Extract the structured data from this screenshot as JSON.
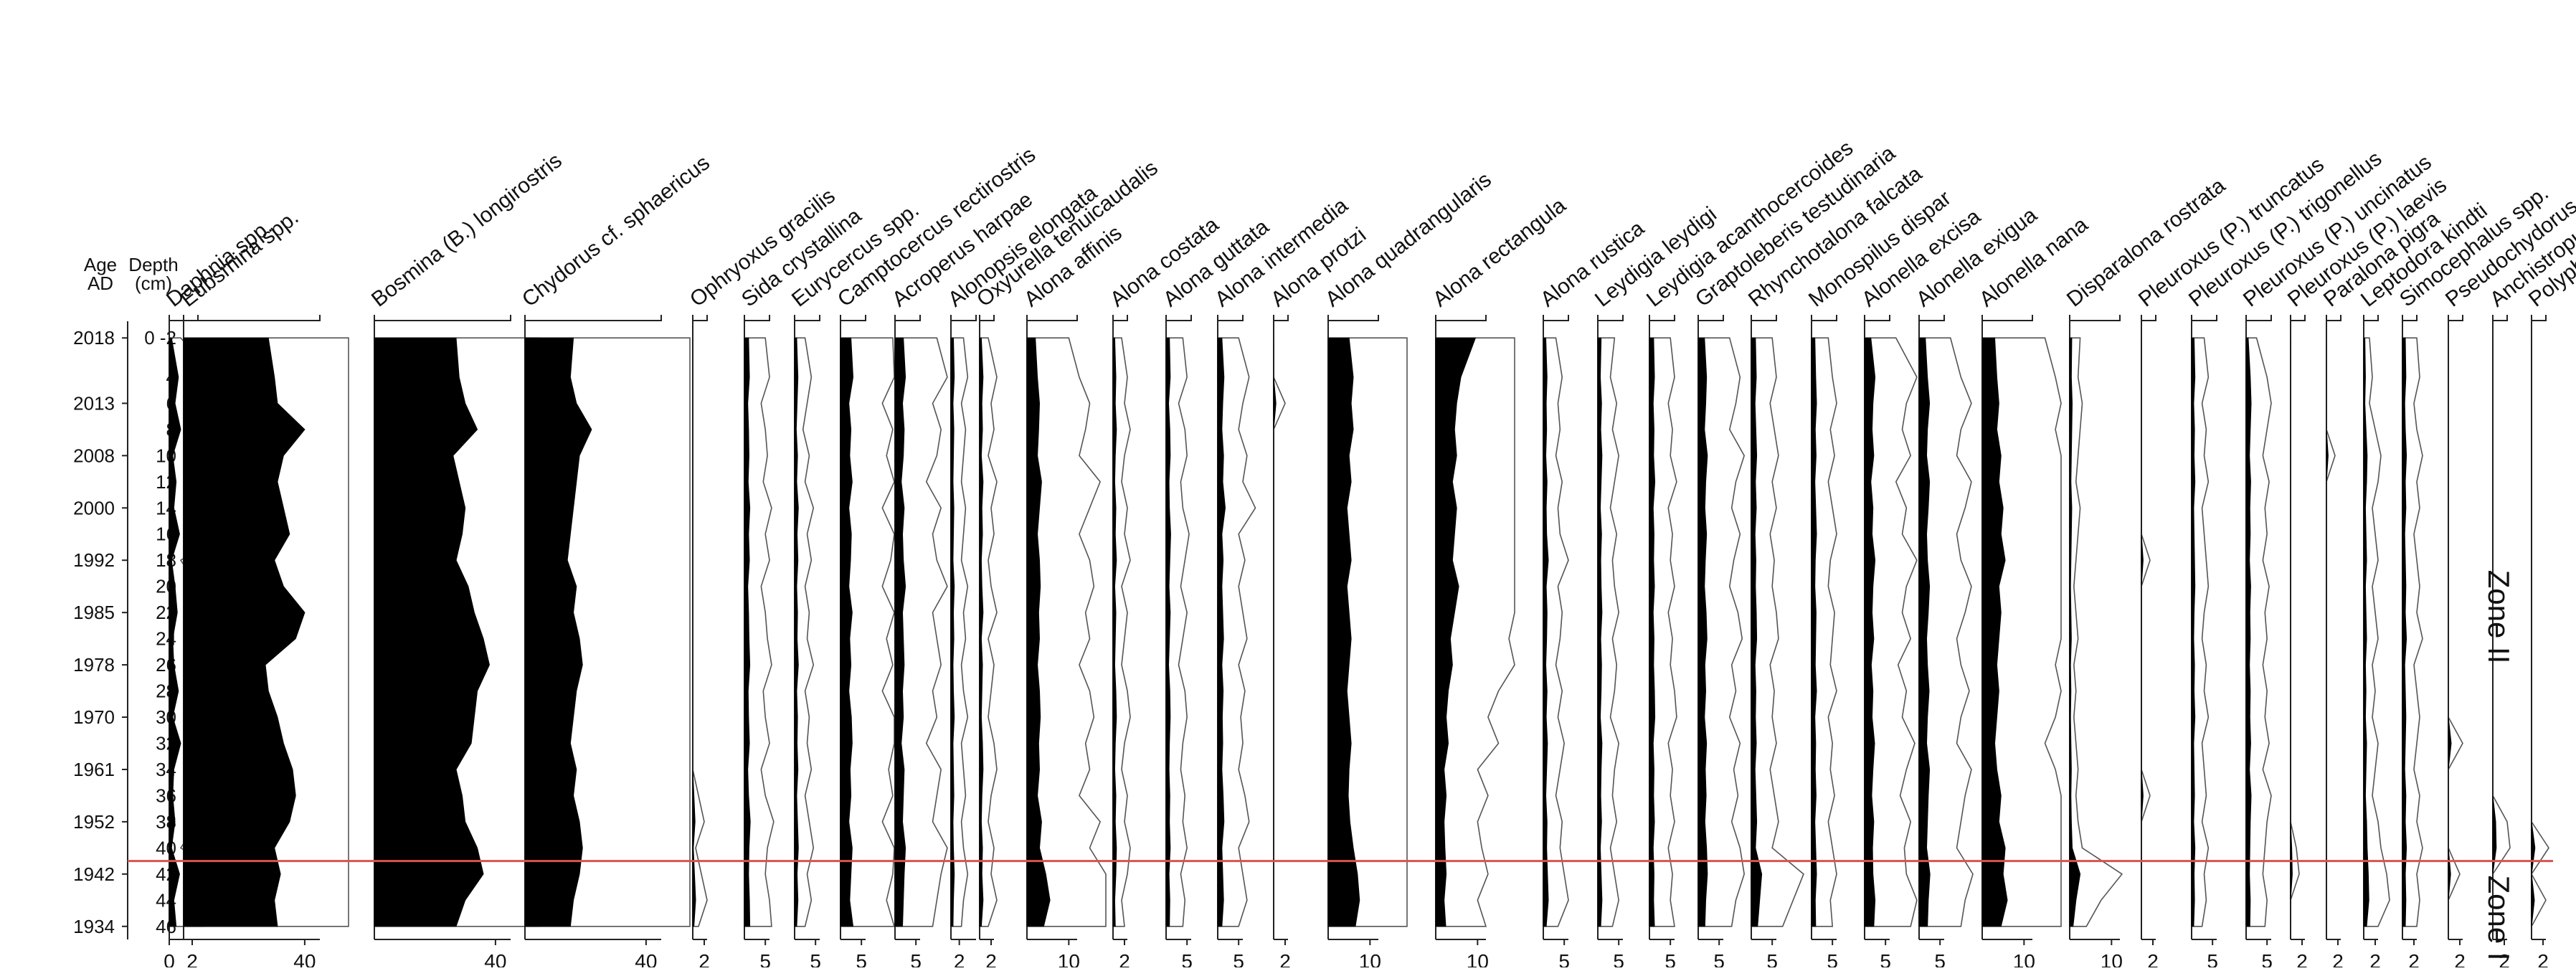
{
  "chart_data": {
    "type": "area",
    "y_axis": {
      "age_title": [
        "Age",
        "AD"
      ],
      "depth_title": [
        "Depth",
        "(cm)"
      ],
      "age_labels": [
        "2018",
        "2013",
        "2008",
        "2000",
        "1992",
        "1985",
        "1978",
        "1970",
        "1961",
        "1952",
        "1942",
        "1934"
      ],
      "depth_labels": [
        "0 -2",
        "4",
        "6",
        "8",
        "10",
        "12",
        "14",
        "16",
        "18",
        "20",
        "22",
        "24",
        "26",
        "28",
        "30",
        "32",
        "34",
        "36",
        "38",
        "40",
        "42",
        "44",
        "46"
      ],
      "depth_values": [
        1,
        4,
        6,
        8,
        10,
        12,
        14,
        16,
        18,
        20,
        22,
        24,
        26,
        28,
        30,
        32,
        34,
        36,
        38,
        40,
        42,
        44,
        46
      ],
      "ylim": [
        0,
        47
      ]
    },
    "zone_boundary_depth": 41,
    "zone_labels": [
      "Zone II",
      "Zone I"
    ],
    "colors": {
      "fill": "#000000",
      "exaggeration_line": "#555555",
      "zone_line": "#d9534f"
    },
    "series": [
      {
        "name": "Daphnia spp.",
        "ticks": [
          0,
          2
        ],
        "values": [
          0.2,
          0.8,
          0.5,
          1.0,
          0.3,
          0.6,
          0.4,
          0.9,
          0.2,
          0.5,
          0.7,
          0.3,
          0.4,
          0.8,
          0.3,
          1.0,
          0.4,
          0.3,
          0.5,
          0.2,
          0.9,
          0.4,
          0.6
        ]
      },
      {
        "name": "Eubsmina spp.",
        "ticks": [
          40
        ],
        "values": [
          28,
          30,
          31,
          40,
          33,
          31,
          33,
          35,
          30,
          33,
          40,
          37,
          27,
          28,
          31,
          33,
          36,
          37,
          35,
          30,
          32,
          30,
          31
        ]
      },
      {
        "name": "Bosmina (B.) longirostris",
        "ticks": [
          40
        ],
        "values": [
          27,
          28,
          30,
          34,
          26,
          28,
          30,
          29,
          27,
          31,
          33,
          36,
          38,
          34,
          33,
          32,
          27,
          29,
          30,
          34,
          36,
          30,
          27
        ]
      },
      {
        "name": "Chydorus cf. sphaericus",
        "ticks": [
          40
        ],
        "values": [
          16,
          15,
          17,
          22,
          18,
          17,
          16,
          15,
          14,
          17,
          16,
          18,
          19,
          17,
          16,
          15,
          17,
          16,
          18,
          19,
          18,
          16,
          15
        ]
      },
      {
        "name": "Ophryoxus gracilis",
        "ticks": [
          2
        ],
        "values": [
          0,
          0,
          0,
          0,
          0,
          0,
          0,
          0,
          0,
          0,
          0,
          0,
          0,
          0,
          0,
          0,
          0,
          0.2,
          0.4,
          0.1,
          0.3,
          0.5,
          0.2
        ]
      },
      {
        "name": "Sida crystallina",
        "ticks": [
          5
        ],
        "values": [
          1.0,
          1.2,
          0.8,
          1.0,
          1.1,
          0.9,
          1.3,
          1.0,
          1.2,
          0.8,
          1.0,
          1.1,
          1.3,
          0.9,
          1.0,
          1.2,
          0.8,
          1.0,
          1.4,
          1.1,
          1.0,
          1.2,
          1.3
        ]
      },
      {
        "name": "Eurycercus spp.",
        "ticks": [
          5
        ],
        "values": [
          0.5,
          0.8,
          0.6,
          0.4,
          0.7,
          0.5,
          0.9,
          0.6,
          0.8,
          0.5,
          0.7,
          0.6,
          0.9,
          0.5,
          0.7,
          0.6,
          0.8,
          0.5,
          0.7,
          0.9,
          0.6,
          0.8,
          0.5
        ]
      },
      {
        "name": "Camptocercus rectirostris",
        "ticks": [
          5
        ],
        "values": [
          2.5,
          3.0,
          2.0,
          2.5,
          2.2,
          2.8,
          2.0,
          2.6,
          2.4,
          2.0,
          2.8,
          2.2,
          2.5,
          2.0,
          2.6,
          2.8,
          2.3,
          2.5,
          2.0,
          2.8,
          2.5,
          2.2,
          3.0
        ]
      },
      {
        "name": "Acroperus harpae",
        "ticks": [
          5
        ],
        "values": [
          2.0,
          2.5,
          1.8,
          2.2,
          2.0,
          1.5,
          2.2,
          1.8,
          2.0,
          2.5,
          1.8,
          2.0,
          2.2,
          1.8,
          2.0,
          1.5,
          2.2,
          2.0,
          1.8,
          2.5,
          2.2,
          2.0,
          1.8
        ]
      },
      {
        "name": "Alonopsis elongata",
        "ticks": [
          2
        ],
        "values": [
          0.6,
          0.8,
          0.5,
          0.7,
          0.6,
          0.5,
          0.7,
          0.6,
          0.5,
          0.8,
          0.6,
          0.7,
          0.5,
          0.6,
          0.8,
          0.5,
          0.6,
          0.7,
          0.5,
          0.6,
          0.8,
          0.6,
          0.5
        ]
      },
      {
        "name": "Oxyurella tenuicaudalis",
        "ticks": [
          2
        ],
        "values": [
          0.3,
          0.6,
          0.4,
          0.5,
          0.3,
          0.6,
          0.4,
          0.5,
          0.3,
          0.4,
          0.6,
          0.3,
          0.5,
          0.4,
          0.3,
          0.5,
          0.6,
          0.4,
          0.3,
          0.5,
          0.4,
          0.6,
          0.3
        ]
      },
      {
        "name": "Alona affinis",
        "ticks": [
          10
        ],
        "values": [
          2.0,
          2.5,
          3.0,
          2.8,
          2.5,
          3.5,
          3.0,
          2.5,
          3.0,
          3.2,
          2.8,
          3.0,
          2.5,
          3.0,
          3.2,
          2.8,
          3.0,
          2.5,
          3.5,
          3.0,
          4.5,
          5.5,
          4.0
        ]
      },
      {
        "name": "Alona costata",
        "ticks": [
          2
        ],
        "values": [
          0.3,
          0.5,
          0.4,
          0.6,
          0.4,
          0.3,
          0.5,
          0.4,
          0.6,
          0.3,
          0.5,
          0.4,
          0.3,
          0.5,
          0.6,
          0.4,
          0.3,
          0.5,
          0.4,
          0.6,
          0.5,
          0.3,
          0.4
        ]
      },
      {
        "name": "Alona guttata",
        "ticks": [
          5
        ],
        "values": [
          0.8,
          1.0,
          0.6,
          0.9,
          1.0,
          0.7,
          0.8,
          1.1,
          0.9,
          0.7,
          1.0,
          0.8,
          0.6,
          0.9,
          1.0,
          0.8,
          0.7,
          0.9,
          0.8,
          1.0,
          0.7,
          0.9,
          0.8
        ]
      },
      {
        "name": "Alona intermedia",
        "ticks": [
          5
        ],
        "values": [
          1.0,
          1.5,
          1.2,
          1.0,
          1.4,
          1.2,
          1.8,
          1.0,
          1.3,
          1.0,
          1.2,
          1.4,
          1.0,
          1.3,
          1.1,
          1.2,
          1.0,
          1.3,
          1.5,
          1.0,
          1.2,
          1.4,
          1.0
        ]
      },
      {
        "name": "Alona protzi",
        "ticks": [
          2
        ],
        "values": [
          0,
          0,
          0.4,
          0,
          0,
          0,
          0,
          0,
          0,
          0,
          0,
          0,
          0,
          0,
          0,
          0,
          0,
          0,
          0,
          0,
          0,
          0,
          0
        ]
      },
      {
        "name": "Alona quadrangularis",
        "ticks": [
          10
        ],
        "values": [
          5.0,
          6.0,
          5.5,
          6.0,
          5.0,
          5.5,
          4.5,
          5.0,
          5.5,
          4.5,
          5.0,
          5.5,
          5.0,
          4.5,
          5.0,
          5.5,
          5.0,
          4.8,
          5.2,
          6.0,
          7.0,
          7.5,
          6.5
        ]
      },
      {
        "name": "Alona rectangula",
        "ticks": [
          10
        ],
        "values": [
          9.5,
          6.0,
          5.0,
          4.5,
          5.0,
          4.0,
          5.0,
          4.5,
          4.0,
          5.5,
          4.5,
          3.5,
          4.0,
          3.0,
          2.5,
          3.0,
          2.0,
          2.5,
          2.0,
          2.2,
          2.5,
          2.0,
          2.4
        ]
      },
      {
        "name": "Alona rustica",
        "ticks": [
          5
        ],
        "values": [
          0.6,
          0.9,
          0.7,
          0.8,
          0.6,
          0.9,
          0.7,
          0.8,
          1.2,
          0.7,
          0.9,
          0.8,
          0.6,
          0.9,
          0.7,
          1.0,
          0.8,
          0.6,
          0.9,
          0.8,
          1.0,
          1.2,
          0.7
        ]
      },
      {
        "name": "Leydigia leydigi",
        "ticks": [
          5
        ],
        "values": [
          0.8,
          0.6,
          0.9,
          0.7,
          1.0,
          0.8,
          0.6,
          0.9,
          0.7,
          0.8,
          1.0,
          0.7,
          0.9,
          0.8,
          0.6,
          1.0,
          0.8,
          0.7,
          0.9,
          0.6,
          0.8,
          1.0,
          0.7
        ]
      },
      {
        "name": "Leydigia acanthocercoides",
        "ticks": [
          5
        ],
        "values": [
          1.0,
          1.2,
          0.9,
          1.1,
          1.0,
          1.3,
          0.9,
          1.1,
          1.0,
          1.2,
          0.9,
          1.1,
          1.0,
          1.2,
          1.3,
          0.9,
          1.1,
          1.0,
          1.2,
          0.9,
          1.1,
          1.0,
          1.2
        ]
      },
      {
        "name": "Graptoleberis testudinaria",
        "ticks": [
          5
        ],
        "values": [
          1.5,
          2.0,
          1.8,
          1.5,
          2.2,
          1.8,
          1.6,
          2.0,
          1.7,
          1.5,
          1.9,
          2.1,
          1.6,
          1.8,
          1.5,
          2.0,
          1.7,
          1.9,
          1.6,
          2.0,
          2.2,
          1.8,
          1.6
        ]
      },
      {
        "name": "Rhynchotalona falcata",
        "ticks": [
          5
        ],
        "values": [
          1.0,
          1.2,
          0.9,
          1.1,
          1.3,
          1.0,
          1.2,
          0.9,
          1.1,
          1.0,
          1.2,
          1.3,
          0.9,
          1.1,
          1.0,
          1.2,
          0.9,
          1.1,
          1.3,
          1.0,
          2.5,
          2.0,
          1.5
        ]
      },
      {
        "name": "Monospilus dispar",
        "ticks": [
          5
        ],
        "values": [
          0.8,
          1.0,
          1.2,
          0.9,
          1.1,
          0.8,
          1.0,
          1.2,
          0.9,
          0.8,
          1.1,
          1.0,
          0.9,
          1.2,
          0.8,
          1.0,
          0.9,
          1.1,
          0.8,
          1.0,
          1.2,
          0.9,
          1.0
        ]
      },
      {
        "name": "Alonella excisa",
        "ticks": [
          5
        ],
        "values": [
          1.5,
          2.5,
          2.0,
          1.8,
          2.2,
          1.5,
          2.0,
          1.8,
          2.5,
          2.0,
          1.8,
          2.2,
          1.6,
          2.0,
          1.8,
          2.4,
          2.0,
          1.7,
          2.2,
          1.9,
          2.0,
          2.5,
          2.2
        ]
      },
      {
        "name": "Alonella exigua",
        "ticks": [
          5
        ],
        "values": [
          1.5,
          2.0,
          2.5,
          2.0,
          1.8,
          2.5,
          2.2,
          1.8,
          2.0,
          2.5,
          2.2,
          1.8,
          2.0,
          2.4,
          2.0,
          1.8,
          2.5,
          2.2,
          2.0,
          1.8,
          2.6,
          2.2,
          2.0
        ]
      },
      {
        "name": "Alonella nana",
        "ticks": [
          10
        ],
        "values": [
          3.0,
          3.5,
          4.0,
          3.5,
          4.5,
          4.0,
          5.0,
          4.5,
          5.5,
          4.0,
          4.5,
          4.0,
          3.5,
          4.0,
          3.5,
          3.0,
          3.5,
          4.5,
          4.0,
          5.5,
          5.0,
          6.0,
          4.5
        ]
      },
      {
        "name": "Disparalona rostrata",
        "ticks": [
          10
        ],
        "values": [
          0.5,
          0.4,
          0.6,
          0.5,
          0.4,
          0.3,
          0.5,
          0.4,
          0.3,
          0.2,
          0.3,
          0.4,
          0.2,
          0.3,
          0.2,
          0.3,
          0.4,
          0.3,
          0.4,
          0.6,
          2.5,
          1.5,
          0.8
        ]
      },
      {
        "name": "Pleuroxus (P.) truncatus",
        "ticks": [
          2
        ],
        "values": [
          0,
          0,
          0,
          0,
          0,
          0,
          0,
          0,
          0.3,
          0,
          0,
          0,
          0,
          0,
          0,
          0,
          0,
          0.3,
          0,
          0,
          0,
          0,
          0
        ]
      },
      {
        "name": "Pleuroxus (P.) trigonellus",
        "ticks": [
          5
        ],
        "values": [
          0.6,
          0.8,
          0.5,
          0.7,
          0.6,
          0.8,
          0.5,
          0.6,
          0.7,
          0.8,
          0.6,
          0.5,
          0.7,
          0.6,
          0.8,
          0.5,
          0.6,
          0.7,
          0.5,
          0.8,
          0.6,
          0.7,
          0.5
        ]
      },
      {
        "name": "Pleuroxus (P.) uncinatus",
        "ticks": [
          5
        ],
        "values": [
          0.5,
          1.0,
          1.2,
          1.0,
          0.8,
          1.1,
          0.9,
          1.0,
          0.8,
          1.1,
          0.9,
          1.0,
          0.8,
          1.0,
          0.9,
          1.1,
          0.8,
          1.2,
          1.0,
          0.9,
          0.8,
          1.0,
          0.9
        ]
      },
      {
        "name": "Pleuroxus (P.) laevis",
        "ticks": [
          2
        ],
        "values": [
          0,
          0,
          0,
          0,
          0,
          0,
          0,
          0,
          0,
          0,
          0,
          0,
          0,
          0,
          0,
          0,
          0,
          0,
          0,
          0.2,
          0.3,
          0,
          0
        ]
      },
      {
        "name": "Paralona pigra",
        "ticks": [
          2
        ],
        "values": [
          0,
          0,
          0,
          0,
          0.3,
          0,
          0,
          0,
          0,
          0,
          0,
          0,
          0,
          0,
          0,
          0,
          0,
          0,
          0,
          0,
          0,
          0,
          0
        ]
      },
      {
        "name": "Leptodora kindti",
        "ticks": [
          2
        ],
        "values": [
          0.2,
          0.3,
          0.2,
          0.4,
          0.6,
          0.5,
          0.3,
          0.4,
          0.5,
          0.3,
          0.4,
          0.5,
          0.3,
          0.4,
          0.3,
          0.5,
          0.4,
          0.3,
          0.5,
          0.6,
          0.8,
          0.9,
          0.5
        ]
      },
      {
        "name": "Simocephalus spp.",
        "ticks": [
          2
        ],
        "values": [
          0.5,
          0.6,
          0.4,
          0.5,
          0.7,
          0.5,
          0.6,
          0.4,
          0.5,
          0.6,
          0.5,
          0.7,
          0.4,
          0.5,
          0.6,
          0.5,
          0.4,
          0.6,
          0.5,
          0.7,
          0.5,
          0.6,
          0.5
        ]
      },
      {
        "name": "Pseudochydorus globosus",
        "ticks": [
          2
        ],
        "values": [
          0,
          0,
          0,
          0,
          0,
          0,
          0,
          0,
          0,
          0,
          0,
          0,
          0,
          0,
          0,
          0.5,
          0,
          0,
          0,
          0,
          0.4,
          0,
          0
        ]
      },
      {
        "name": "Anchistropus emarginatus",
        "ticks": [
          2
        ],
        "values": [
          0,
          0,
          0,
          0,
          0,
          0,
          0,
          0,
          0,
          0,
          0,
          0,
          0,
          0,
          0,
          0,
          0,
          0,
          0.5,
          0.6,
          0,
          0,
          0
        ]
      },
      {
        "name": "Polyphemus pediculus",
        "ticks": [
          2
        ],
        "values": [
          0,
          0,
          0,
          0,
          0,
          0,
          0,
          0,
          0,
          0,
          0,
          0,
          0,
          0,
          0,
          0,
          0,
          0,
          0,
          0.6,
          0,
          0.5,
          0
        ]
      }
    ]
  }
}
